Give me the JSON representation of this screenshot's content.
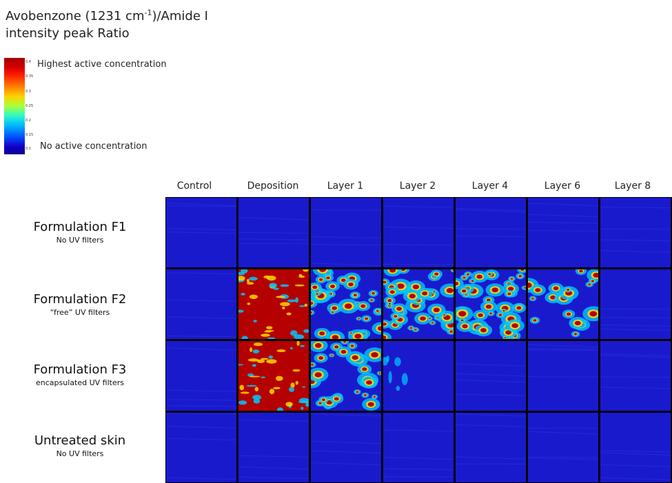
{
  "title": {
    "line1_pre": "Avobenzone (1231 cm",
    "line1_sup": "-1",
    "line1_post": ")/Amide I",
    "line2": "intensity peak  Ratio"
  },
  "scale": {
    "ticks": [
      "0.4",
      "0.35",
      "0.3",
      "0.25",
      "0.2",
      "0.15",
      "0.1"
    ],
    "high_label": "Highest active concentration",
    "low_label": "No active concentration"
  },
  "columns": [
    "Control",
    "Deposition",
    "Layer 1",
    "Layer 2",
    "Layer 4",
    "Layer 6",
    "Layer 8"
  ],
  "rows": [
    {
      "name": "Formulation F1",
      "sub": "No UV filters"
    },
    {
      "name": "Formulation F2",
      "sub": "“free” UV filters"
    },
    {
      "name": "Formulation F3",
      "sub": "encapsulated UV filters"
    },
    {
      "name": "Untreated skin",
      "sub": "No UV filters"
    }
  ],
  "colors": {
    "background_low": "#1a1acd",
    "mid": "#00c8ff",
    "high": "#b50000",
    "hot": "#ff2a00",
    "warm": "#ffd500"
  },
  "intensity": [
    [
      0.02,
      0.02,
      0.03,
      0.03,
      0.05,
      0.05,
      0.04
    ],
    [
      0.03,
      0.9,
      0.6,
      0.7,
      0.7,
      0.3,
      0.05
    ],
    [
      0.05,
      0.8,
      0.45,
      0.12,
      0.05,
      0.05,
      0.05
    ],
    [
      0.05,
      0.06,
      0.06,
      0.06,
      0.06,
      0.06,
      0.06
    ]
  ]
}
